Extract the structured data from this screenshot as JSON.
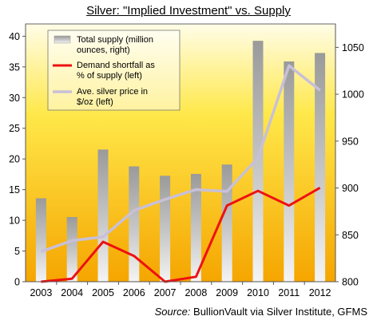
{
  "title": "Silver: \"Implied Investment\" vs. Supply",
  "source_label": "Source:",
  "source_text": " BullionVault via Silver Institute, GFMS",
  "chart_data": {
    "type": "bar+line",
    "categories": [
      "2003",
      "2004",
      "2005",
      "2006",
      "2007",
      "2008",
      "2009",
      "2010",
      "2011",
      "2012"
    ],
    "series": [
      {
        "name": "Total supply (million ounces, right)",
        "type": "bar",
        "axis": "right",
        "values": [
          889,
          869,
          941,
          923,
          913,
          915,
          925,
          1057,
          1035,
          1044
        ],
        "color": "#909090"
      },
      {
        "name": "Demand shortfall as % of supply (left)",
        "type": "line",
        "axis": "left",
        "values": [
          0,
          0.5,
          6.5,
          4.2,
          0,
          0.8,
          12.4,
          14.8,
          12.4,
          15.3
        ],
        "color": "#ee1111"
      },
      {
        "name": "Ave. silver price in $/oz (left)",
        "type": "line",
        "axis": "left",
        "values": [
          4.9,
          6.7,
          7.3,
          11.6,
          13.4,
          15.0,
          14.7,
          20.2,
          35.2,
          31.2
        ],
        "color": "#c8c0d8"
      }
    ],
    "left_axis": {
      "min": 0,
      "max": 42,
      "ticks": [
        0,
        5,
        10,
        15,
        20,
        25,
        30,
        35,
        40
      ]
    },
    "right_axis": {
      "min": 800,
      "max": 1075,
      "ticks": [
        800,
        850,
        900,
        950,
        1000,
        1050
      ]
    },
    "legend": {
      "position": "top-left",
      "lines": [
        [
          "Total supply (million",
          "ounces, right)"
        ],
        [
          "Demand shortfall as",
          "% of supply (left)"
        ],
        [
          "Ave. silver price in",
          "$/oz (left)"
        ]
      ]
    },
    "background": {
      "top": "#fffbe0",
      "bottom": "#f5a800"
    }
  }
}
